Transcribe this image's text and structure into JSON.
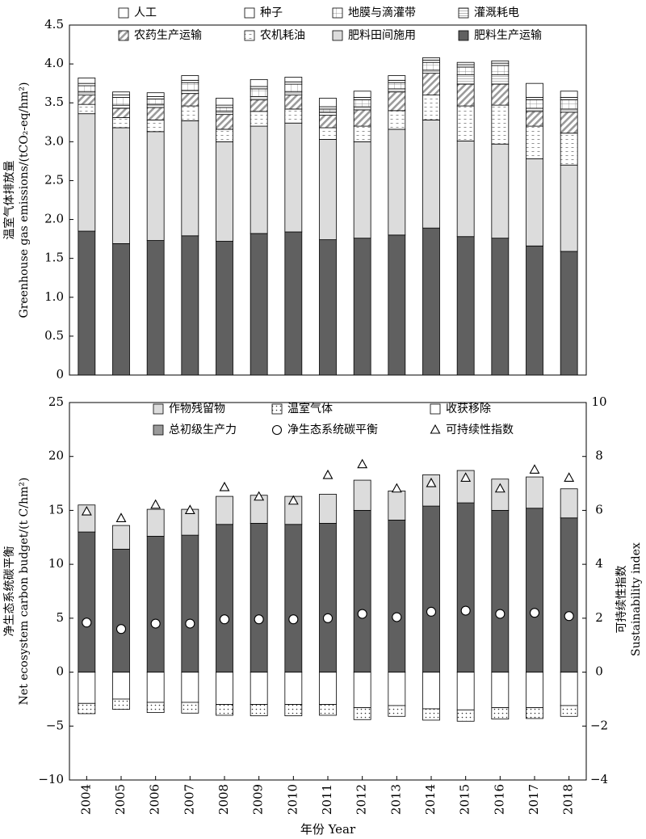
{
  "chart_data": [
    {
      "type": "bar",
      "stacked": true,
      "xlabel": "",
      "ylabel": "温室气体排放量",
      "ylabel2": "Greenhouse gas emissions/(tCO₂-eq/hm²)",
      "ylim": [
        0,
        4.5
      ],
      "yticks": [
        "0",
        "0.5",
        "1.0",
        "1.5",
        "2.0",
        "2.5",
        "3.0",
        "3.5",
        "4.0",
        "4.5"
      ],
      "categories": [
        "2004",
        "2005",
        "2006",
        "2007",
        "2008",
        "2009",
        "2010",
        "2011",
        "2012",
        "2013",
        "2014",
        "2015",
        "2016",
        "2017",
        "2018"
      ],
      "legend": [
        "人工",
        "种子",
        "地膜与滴灌带",
        "灌溉耗电",
        "农药生产运输",
        "农机耗油",
        "肥料田间施用",
        "肥料生产运输"
      ],
      "series": [
        {
          "name": "肥料生产运输",
          "color": "#606060",
          "values": [
            1.85,
            1.69,
            1.73,
            1.79,
            1.72,
            1.82,
            1.84,
            1.74,
            1.76,
            1.8,
            1.89,
            1.78,
            1.76,
            1.66,
            1.59
          ]
        },
        {
          "name": "肥料田间施用",
          "color": "#dddddd",
          "values": [
            1.51,
            1.49,
            1.4,
            1.48,
            1.28,
            1.38,
            1.4,
            1.29,
            1.24,
            1.36,
            1.39,
            1.23,
            1.21,
            1.12,
            1.11
          ]
        },
        {
          "name": "农机耗油",
          "color": "#ffffff",
          "values": [
            0.12,
            0.13,
            0.15,
            0.19,
            0.16,
            0.19,
            0.18,
            0.15,
            0.2,
            0.24,
            0.32,
            0.45,
            0.5,
            0.42,
            0.41
          ]
        },
        {
          "name": "农药生产运输",
          "color": "#c8c8c8",
          "values": [
            0.12,
            0.12,
            0.16,
            0.16,
            0.19,
            0.15,
            0.18,
            0.16,
            0.21,
            0.24,
            0.28,
            0.28,
            0.27,
            0.19,
            0.27
          ]
        },
        {
          "name": "灌溉耗电",
          "color": "#e8e8e8",
          "values": [
            0.04,
            0.04,
            0.04,
            0.04,
            0.04,
            0.04,
            0.04,
            0.04,
            0.04,
            0.04,
            0.04,
            0.12,
            0.12,
            0.04,
            0.04
          ]
        },
        {
          "name": "地膜与滴灌带",
          "color": "#c8c8c8",
          "values": [
            0.08,
            0.1,
            0.07,
            0.1,
            0.05,
            0.1,
            0.1,
            0.04,
            0.09,
            0.08,
            0.1,
            0.1,
            0.12,
            0.11,
            0.12
          ]
        },
        {
          "name": "种子",
          "color": "#ffffff",
          "values": [
            0.03,
            0.03,
            0.03,
            0.03,
            0.03,
            0.03,
            0.03,
            0.03,
            0.03,
            0.03,
            0.03,
            0.03,
            0.03,
            0.03,
            0.03
          ]
        },
        {
          "name": "人工",
          "color": "#ffffff",
          "values": [
            0.07,
            0.04,
            0.05,
            0.06,
            0.09,
            0.09,
            0.06,
            0.11,
            0.08,
            0.06,
            0.03,
            0.03,
            0.03,
            0.18,
            0.08
          ]
        }
      ]
    },
    {
      "type": "bar",
      "stacked": true,
      "xlabel": "年份 Year",
      "ylabel": "净生态系统碳平衡",
      "ylabel2": "Net ecosystem carbon budget/(t C/hm²)",
      "ylabel_right": "可持续性指数",
      "ylabel_right2": "Sustainability index",
      "ylim": [
        -10,
        25
      ],
      "ylim_right": [
        -4,
        10
      ],
      "yticks": [
        "−10",
        "−5",
        "0",
        "5",
        "10",
        "15",
        "20",
        "25"
      ],
      "yticks_right": [
        "−4",
        "−2",
        "0",
        "2",
        "4",
        "6",
        "8",
        "10"
      ],
      "categories": [
        "2004",
        "2005",
        "2006",
        "2007",
        "2008",
        "2009",
        "2010",
        "2011",
        "2012",
        "2013",
        "2014",
        "2015",
        "2016",
        "2017",
        "2018"
      ],
      "legend": [
        "作物残留物",
        "温室气体",
        "收获移除",
        "总初级生产力",
        "净生态系统碳平衡",
        "可持续性指数"
      ],
      "series": [
        {
          "name": "总初级生产力",
          "color": "#606060",
          "values": [
            13.0,
            11.4,
            12.6,
            12.7,
            13.7,
            13.8,
            13.7,
            13.8,
            15.0,
            14.1,
            15.4,
            15.7,
            15.0,
            15.2,
            14.3
          ]
        },
        {
          "name": "作物残留物",
          "color": "#dddddd",
          "values": [
            2.5,
            2.2,
            2.5,
            2.4,
            2.6,
            2.6,
            2.6,
            2.7,
            2.8,
            2.7,
            2.9,
            3.0,
            2.9,
            2.9,
            2.7
          ]
        },
        {
          "name": "收获移除",
          "color": "#ffffff",
          "values": [
            -2.9,
            -2.5,
            -2.8,
            -2.8,
            -3.0,
            -3.0,
            -3.0,
            -3.0,
            -3.3,
            -3.1,
            -3.4,
            -3.5,
            -3.3,
            -3.3,
            -3.1
          ]
        },
        {
          "name": "温室气体",
          "color": "#ffffff",
          "values": [
            -0.95,
            -0.95,
            -0.95,
            -1.0,
            -1.0,
            -1.05,
            -1.05,
            -1.0,
            -1.1,
            -1.0,
            -1.05,
            -1.05,
            -1.05,
            -1.0,
            -1.0
          ]
        }
      ],
      "net_balance": [
        4.6,
        4.0,
        4.5,
        4.5,
        4.9,
        4.9,
        4.9,
        5.0,
        5.4,
        5.1,
        5.6,
        5.7,
        5.4,
        5.5,
        5.2
      ],
      "sustainability_index": [
        5.95,
        5.7,
        6.2,
        6.0,
        6.85,
        6.5,
        6.35,
        7.3,
        7.7,
        6.8,
        7.0,
        7.2,
        6.8,
        7.5,
        7.2
      ]
    }
  ]
}
